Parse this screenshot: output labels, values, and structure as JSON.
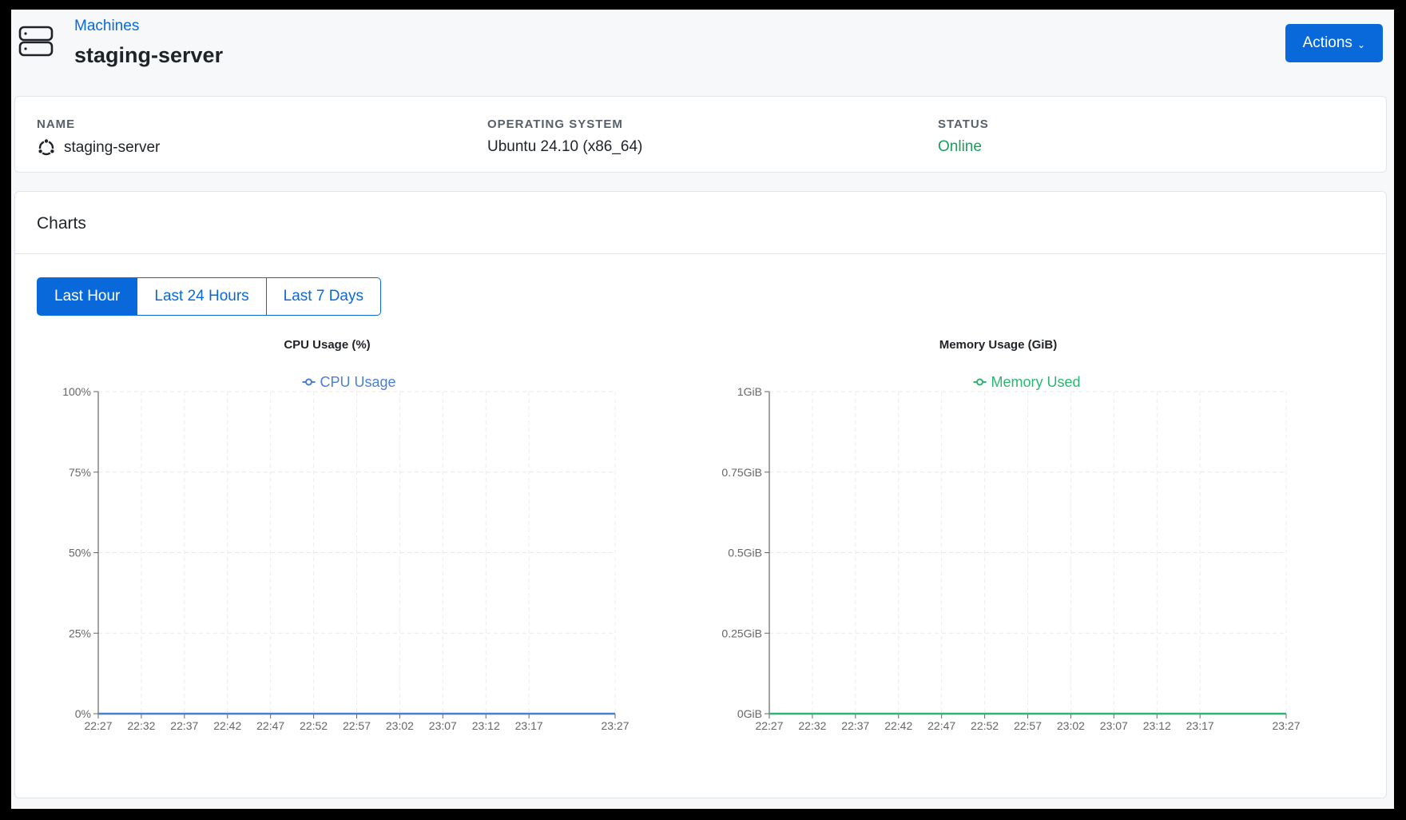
{
  "header": {
    "breadcrumb": "Machines",
    "title": "staging-server",
    "actions_label": "Actions",
    "icon": "server-icon"
  },
  "info": {
    "name_label": "NAME",
    "name_value": "staging-server",
    "name_icon": "ubuntu-icon",
    "os_label": "OPERATING SYSTEM",
    "os_value": "Ubuntu 24.10 (x86_64)",
    "status_label": "STATUS",
    "status_value": "Online",
    "status_color": "#1a9e5c"
  },
  "charts_section": {
    "title": "Charts",
    "ranges": [
      "Last Hour",
      "Last 24 Hours",
      "Last 7 Days"
    ],
    "active_range": "Last Hour"
  },
  "chart_data": [
    {
      "type": "line",
      "title": "CPU Usage (%)",
      "xlabel": "",
      "ylabel": "",
      "x": [
        "22:27",
        "22:32",
        "22:37",
        "22:42",
        "22:47",
        "22:52",
        "22:57",
        "23:02",
        "23:07",
        "23:12",
        "23:17",
        "23:27"
      ],
      "x_ticks": [
        "22:27",
        "22:32",
        "22:37",
        "22:42",
        "22:47",
        "22:52",
        "22:57",
        "23:02",
        "23:07",
        "23:12",
        "23:17",
        "23:27"
      ],
      "ylim": [
        0,
        100
      ],
      "y_ticks": [
        0,
        25,
        50,
        75,
        100
      ],
      "y_tick_labels": [
        "0%",
        "25%",
        "50%",
        "75%",
        "100%"
      ],
      "legend": "top-center",
      "grid": true,
      "series": [
        {
          "name": "CPU Usage",
          "color": "#4a7fd6",
          "values": [
            0,
            0,
            0,
            0,
            0,
            0,
            0,
            0,
            0,
            0,
            0,
            0
          ]
        }
      ]
    },
    {
      "type": "line",
      "title": "Memory Usage (GiB)",
      "xlabel": "",
      "ylabel": "",
      "x": [
        "22:27",
        "22:32",
        "22:37",
        "22:42",
        "22:47",
        "22:52",
        "22:57",
        "23:02",
        "23:07",
        "23:12",
        "23:17",
        "23:27"
      ],
      "x_ticks": [
        "22:27",
        "22:32",
        "22:37",
        "22:42",
        "22:47",
        "22:52",
        "22:57",
        "23:02",
        "23:07",
        "23:12",
        "23:17",
        "23:27"
      ],
      "ylim": [
        0,
        1
      ],
      "y_ticks": [
        0,
        0.25,
        0.5,
        0.75,
        1
      ],
      "y_tick_labels": [
        "0GiB",
        "0.25GiB",
        "0.5GiB",
        "0.75GiB",
        "1GiB"
      ],
      "legend": "top-center",
      "grid": true,
      "series": [
        {
          "name": "Memory Used",
          "color": "#2bb673",
          "values": [
            0,
            0,
            0,
            0,
            0,
            0,
            0,
            0,
            0,
            0,
            0,
            0
          ]
        }
      ]
    }
  ]
}
